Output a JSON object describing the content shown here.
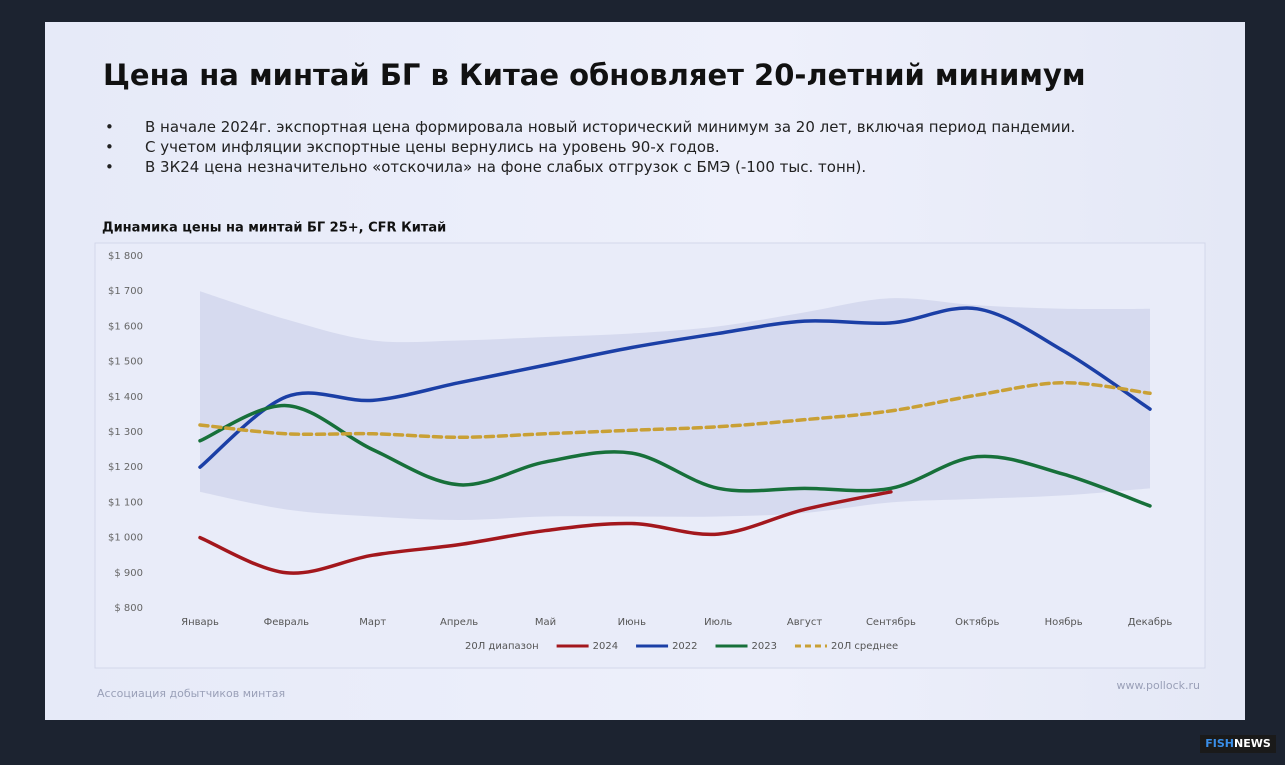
{
  "header": {
    "title": "Цена на минтай БГ в Китае обновляет 20-летний минимум"
  },
  "bullets": [
    "В начале 2024г. экспортная цена формировала новый исторический минимум за 20 лет, включая период пандемии.",
    "С учетом инфляции экспортные цены вернулись на уровень 90-х годов.",
    "В 3К24 цена незначительно «отскочила» на фоне слабых отгрузок с БМЭ (-100 тыс. тонн)."
  ],
  "chart_data": {
    "type": "line",
    "title": "Динамика цены на минтай БГ 25+, CFR Китай",
    "categories": [
      "Январь",
      "Февраль",
      "Март",
      "Апрель",
      "Май",
      "Июнь",
      "Июль",
      "Август",
      "Сентябрь",
      "Октябрь",
      "Ноябрь",
      "Декабрь"
    ],
    "ylim": [
      800,
      1800
    ],
    "yticks": [
      {
        "value": 800,
        "label": "$ 800"
      },
      {
        "value": 900,
        "label": "$ 900"
      },
      {
        "value": 1000,
        "label": "$1 000"
      },
      {
        "value": 1100,
        "label": "$1 100"
      },
      {
        "value": 1200,
        "label": "$1 200"
      },
      {
        "value": 1300,
        "label": "$1 300"
      },
      {
        "value": 1400,
        "label": "$1 400"
      },
      {
        "value": 1500,
        "label": "$1 500"
      },
      {
        "value": 1600,
        "label": "$1 600"
      },
      {
        "value": 1700,
        "label": "$1 700"
      },
      {
        "value": 1800,
        "label": "$1 800"
      }
    ],
    "grid": false,
    "series": [
      {
        "name": "20Л диапазон",
        "type": "range",
        "color": "#c9cfe8",
        "low": [
          1130,
          1080,
          1060,
          1050,
          1060,
          1060,
          1060,
          1070,
          1100,
          1110,
          1120,
          1140
        ],
        "high": [
          1700,
          1620,
          1560,
          1560,
          1570,
          1580,
          1600,
          1640,
          1680,
          1660,
          1650,
          1650
        ]
      },
      {
        "name": "2024",
        "color": "#a3171d",
        "values": [
          1000,
          900,
          950,
          980,
          1020,
          1040,
          1010,
          1080,
          1130,
          null,
          null,
          null
        ]
      },
      {
        "name": "2022",
        "color": "#1b3fa6",
        "values": [
          1200,
          1400,
          1390,
          1440,
          1490,
          1540,
          1580,
          1615,
          1610,
          1650,
          1530,
          1365
        ]
      },
      {
        "name": "2023",
        "color": "#17703a",
        "values": [
          1275,
          1375,
          1250,
          1150,
          1215,
          1240,
          1140,
          1140,
          1140,
          1230,
          1180,
          1090
        ]
      },
      {
        "name": "20Л среднее",
        "color": "#c9a035",
        "dash": true,
        "values": [
          1320,
          1295,
          1295,
          1285,
          1295,
          1305,
          1315,
          1335,
          1360,
          1405,
          1440,
          1410
        ]
      }
    ]
  },
  "footer": {
    "left": "Ассоциация добытчиков минтая",
    "right": "www.pollock.ru"
  },
  "watermark": {
    "fish": "FISH",
    "news": "NEWS"
  }
}
